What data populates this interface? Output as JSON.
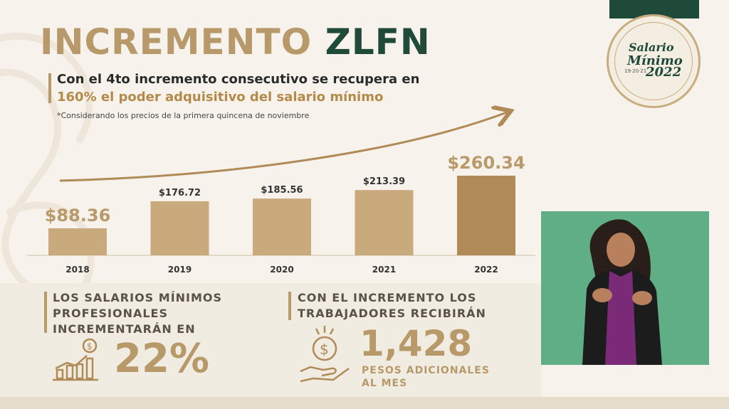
{
  "header": {
    "title_part1": "INCREMENTO",
    "title_part2": "ZLFN",
    "subtitle_line1": "Con el 4to incremento consecutivo se recupera en",
    "subtitle_line2": "160% el poder adquisitivo del salario mínimo",
    "note": "*Considerando los precios de la primera quincena de noviembre"
  },
  "chart_data": {
    "type": "bar",
    "categories": [
      "2018",
      "2019",
      "2020",
      "2021",
      "2022"
    ],
    "values": [
      88.36,
      176.72,
      185.56,
      213.39,
      260.34
    ],
    "value_labels": [
      "$88.36",
      "$176.72",
      "$185.56",
      "$213.39",
      "$260.34"
    ],
    "ylim": [
      0,
      260.34
    ],
    "colors": {
      "bar": "#c8aa7d",
      "bar_last": "#b08a57",
      "label": "#333333",
      "label_big": "#b8996a"
    }
  },
  "info_left": {
    "line1": "LOS SALARIOS MÍNIMOS",
    "line2": "PROFESIONALES",
    "line3": "INCREMENTARÁN EN",
    "value": "22%",
    "icon": "bar-growth-icon"
  },
  "info_right": {
    "line1": "CON EL INCREMENTO LOS",
    "line2": "TRABAJADORES RECIBIRÁN",
    "value": "1,428",
    "caption1": "PESOS ADICIONALES",
    "caption2": "AL MES",
    "icon": "hand-coin-icon"
  },
  "badge": {
    "line1": "Salario",
    "line2": "Mínimo",
    "year_small": "19·20·21",
    "year": "2022"
  },
  "colors": {
    "gold": "#b8996a",
    "green": "#1f4a3a",
    "background": "#f7f3ec",
    "video_bg": "#5fae86"
  }
}
